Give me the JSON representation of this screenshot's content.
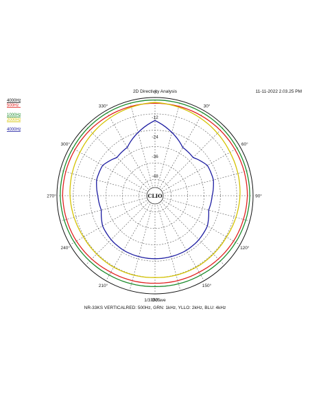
{
  "header": {
    "title": "2D Directivity Analysis",
    "timestamp": "11-11-2022 2.03.25 PM"
  },
  "footer": {
    "resolution": "1/3 Octave",
    "description": "NR-33KS VERTICALRED: 500Hz, GRN: 1kHz, YLLO: 2kHz, BLU: 4kHz"
  },
  "logo": {
    "text": "CLIO"
  },
  "legend": [
    {
      "label": "4000Hz",
      "color": "#111111"
    },
    {
      "label": "500Hz",
      "color": "#e0201f"
    },
    {
      "label": "1000Hz",
      "color": "#1a8a2a"
    },
    {
      "label": "2000Hz",
      "color": "#d4c200"
    },
    {
      "label": "4000Hz",
      "color": "#1a1aa0"
    }
  ],
  "chart_data": {
    "type": "polar",
    "title": "2D Directivity Analysis",
    "angle_ticks": [
      "0",
      "30°",
      "60°",
      "90°",
      "120°",
      "150°",
      "180°",
      "210°",
      "240°",
      "270°",
      "300°",
      "330°"
    ],
    "radial_ticks": [
      "-12",
      "-24",
      "-36",
      "-48",
      "-60"
    ],
    "rlim": [
      -60,
      0
    ],
    "grid": true,
    "legend_position": "top-left",
    "series": [
      {
        "name": "500Hz",
        "color": "#e0201f",
        "angles": [
          0,
          30,
          60,
          90,
          120,
          150,
          180,
          210,
          240,
          270,
          300,
          330
        ],
        "values": [
          -3.5,
          -3.5,
          -3.5,
          -3.5,
          -4.5,
          -6,
          -6.5,
          -6,
          -4.5,
          -3.5,
          -3.5,
          -3.5
        ]
      },
      {
        "name": "1000Hz",
        "color": "#1a8a2a",
        "angles": [
          0,
          30,
          60,
          90,
          120,
          150,
          180,
          210,
          240,
          270,
          300,
          330
        ],
        "values": [
          -1.5,
          -1.5,
          -2,
          -2,
          -3,
          -4,
          -4.5,
          -4,
          -3,
          -2,
          -2,
          -1.5
        ]
      },
      {
        "name": "2000Hz",
        "color": "#d4c200",
        "angles": [
          0,
          30,
          60,
          90,
          120,
          150,
          180,
          210,
          240,
          270,
          300,
          330
        ],
        "values": [
          -3,
          -5,
          -7,
          -8,
          -9.5,
          -9.5,
          -10,
          -9.5,
          -9.5,
          -8,
          -7,
          -5
        ]
      },
      {
        "name": "4000Hz",
        "color": "#1a1aa0",
        "angles": [
          0,
          15,
          30,
          45,
          60,
          75,
          90,
          105,
          120,
          135,
          150,
          165,
          180,
          195,
          210,
          225,
          240,
          255,
          270,
          285,
          300,
          315,
          330,
          345
        ],
        "values": [
          -14,
          -20,
          -26,
          -27,
          -23,
          -23,
          -25,
          -26,
          -23,
          -22,
          -21.5,
          -21.5,
          -21.5,
          -21.5,
          -21.5,
          -22,
          -23,
          -26,
          -25,
          -23,
          -23,
          -27,
          -26,
          -20
        ]
      }
    ]
  }
}
